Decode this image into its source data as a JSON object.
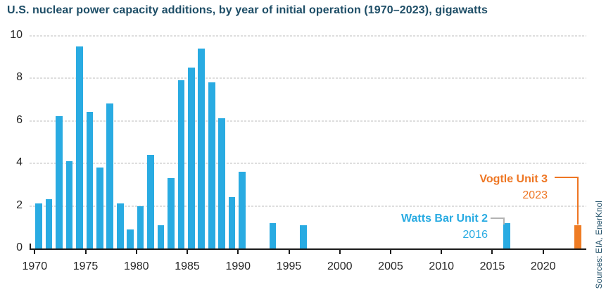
{
  "title": "U.S. nuclear power capacity additions, by year of initial operation (1970–2023), gigawatts",
  "source_note": "Sources: EIA, EnerKnol",
  "annotations": {
    "watts_bar": {
      "label": "Watts Bar Unit 2",
      "year": "2016"
    },
    "vogtle": {
      "label": "Vogtle Unit 3",
      "year": "2023"
    }
  },
  "colors": {
    "bar_blue": "#29ABE2",
    "bar_orange": "#EF7C24",
    "title_navy": "#1D4D66",
    "gridline": "#DEDEDE",
    "axis": "#1A1A1A",
    "connector_gray": "#B3B3B3"
  },
  "chart_data": {
    "type": "bar",
    "title": "U.S. nuclear power capacity additions, by year of initial operation (1970–2023), gigawatts",
    "xlabel": "year of initial operation",
    "ylabel": "gigawatts",
    "ylim": [
      0,
      10
    ],
    "yticks": [
      0,
      2,
      4,
      6,
      8,
      10
    ],
    "xticks": [
      1970,
      1975,
      1980,
      1985,
      1990,
      1995,
      2000,
      2005,
      2010,
      2015,
      2020
    ],
    "grid": "horizontal-dashed",
    "legend": "none",
    "highlight_year": 2023,
    "points": [
      {
        "year": 1970,
        "value": 2.1
      },
      {
        "year": 1971,
        "value": 2.3
      },
      {
        "year": 1972,
        "value": 6.2
      },
      {
        "year": 1973,
        "value": 4.1
      },
      {
        "year": 1974,
        "value": 9.5
      },
      {
        "year": 1975,
        "value": 6.4
      },
      {
        "year": 1976,
        "value": 3.8
      },
      {
        "year": 1977,
        "value": 6.8
      },
      {
        "year": 1978,
        "value": 2.1
      },
      {
        "year": 1979,
        "value": 0.9
      },
      {
        "year": 1980,
        "value": 2.0
      },
      {
        "year": 1981,
        "value": 4.4
      },
      {
        "year": 1982,
        "value": 1.1
      },
      {
        "year": 1983,
        "value": 3.3
      },
      {
        "year": 1984,
        "value": 7.9
      },
      {
        "year": 1985,
        "value": 8.5
      },
      {
        "year": 1986,
        "value": 9.4
      },
      {
        "year": 1987,
        "value": 7.8
      },
      {
        "year": 1988,
        "value": 6.1
      },
      {
        "year": 1989,
        "value": 2.4
      },
      {
        "year": 1990,
        "value": 3.6
      },
      {
        "year": 1993,
        "value": 1.2
      },
      {
        "year": 1996,
        "value": 1.1
      },
      {
        "year": 2016,
        "value": 1.2
      },
      {
        "year": 2023,
        "value": 1.1
      }
    ]
  }
}
